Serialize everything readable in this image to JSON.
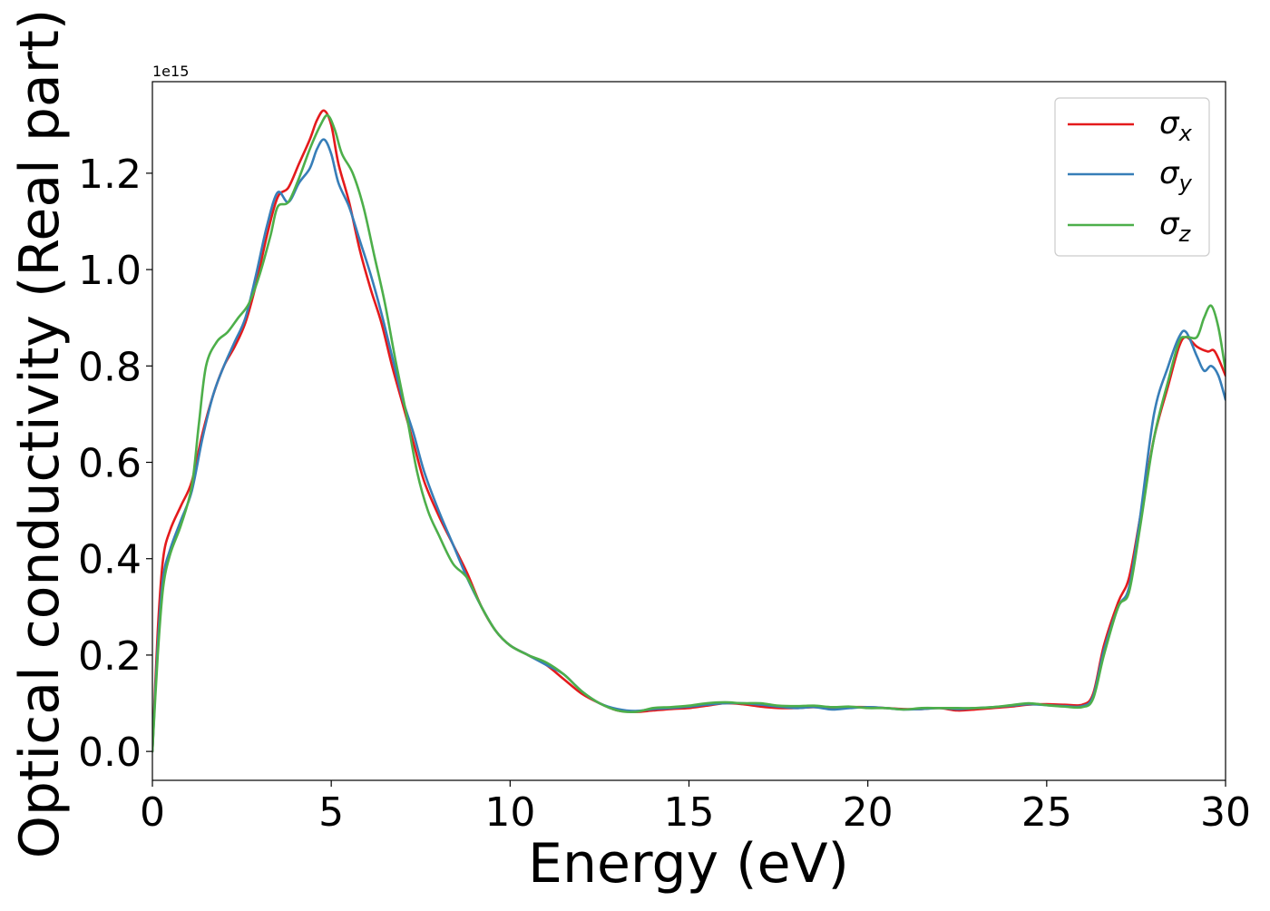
{
  "chart_data": {
    "type": "line",
    "title": "",
    "xlabel": "Energy (eV)",
    "ylabel": "Optical conductivity (Real part)",
    "y_offset_text": "1e15",
    "xlim": [
      0,
      30
    ],
    "ylim": [
      -0.06,
      1.39
    ],
    "x_ticks": [
      0,
      5,
      10,
      15,
      20,
      25,
      30
    ],
    "x_tick_labels": [
      "0",
      "5",
      "10",
      "15",
      "20",
      "25",
      "30"
    ],
    "y_ticks": [
      0.0,
      0.2,
      0.4,
      0.6,
      0.8,
      1.0,
      1.2
    ],
    "y_tick_labels": [
      "0.0",
      "0.2",
      "0.4",
      "0.6",
      "0.8",
      "1.0",
      "1.2"
    ],
    "grid": false,
    "legend_position": "upper-right",
    "series": [
      {
        "name": "σx",
        "symbol": "σ",
        "subscript": "x",
        "color": "#e41a1c",
        "points": [
          [
            0.0,
            0.0
          ],
          [
            0.15,
            0.25
          ],
          [
            0.3,
            0.4
          ],
          [
            0.5,
            0.46
          ],
          [
            0.8,
            0.51
          ],
          [
            1.1,
            0.56
          ],
          [
            1.4,
            0.66
          ],
          [
            1.7,
            0.74
          ],
          [
            2.0,
            0.8
          ],
          [
            2.3,
            0.84
          ],
          [
            2.6,
            0.89
          ],
          [
            2.9,
            0.97
          ],
          [
            3.2,
            1.07
          ],
          [
            3.5,
            1.15
          ],
          [
            3.8,
            1.17
          ],
          [
            4.1,
            1.22
          ],
          [
            4.4,
            1.27
          ],
          [
            4.6,
            1.31
          ],
          [
            4.8,
            1.33
          ],
          [
            5.0,
            1.3
          ],
          [
            5.2,
            1.22
          ],
          [
            5.5,
            1.14
          ],
          [
            5.8,
            1.04
          ],
          [
            6.1,
            0.96
          ],
          [
            6.4,
            0.89
          ],
          [
            6.7,
            0.8
          ],
          [
            7.0,
            0.72
          ],
          [
            7.3,
            0.64
          ],
          [
            7.6,
            0.56
          ],
          [
            8.0,
            0.49
          ],
          [
            8.4,
            0.43
          ],
          [
            8.8,
            0.37
          ],
          [
            9.2,
            0.3
          ],
          [
            9.6,
            0.25
          ],
          [
            10.0,
            0.22
          ],
          [
            10.5,
            0.2
          ],
          [
            11.0,
            0.18
          ],
          [
            11.5,
            0.15
          ],
          [
            12.0,
            0.12
          ],
          [
            12.5,
            0.1
          ],
          [
            13.0,
            0.085
          ],
          [
            13.5,
            0.082
          ],
          [
            14.0,
            0.085
          ],
          [
            14.5,
            0.088
          ],
          [
            15.0,
            0.09
          ],
          [
            15.5,
            0.095
          ],
          [
            16.0,
            0.1
          ],
          [
            16.5,
            0.098
          ],
          [
            17.0,
            0.093
          ],
          [
            17.5,
            0.09
          ],
          [
            18.0,
            0.09
          ],
          [
            18.5,
            0.092
          ],
          [
            19.0,
            0.09
          ],
          [
            19.5,
            0.092
          ],
          [
            20.0,
            0.092
          ],
          [
            20.5,
            0.09
          ],
          [
            21.0,
            0.088
          ],
          [
            21.5,
            0.088
          ],
          [
            22.0,
            0.09
          ],
          [
            22.5,
            0.085
          ],
          [
            23.0,
            0.087
          ],
          [
            23.5,
            0.09
          ],
          [
            24.0,
            0.093
          ],
          [
            24.5,
            0.097
          ],
          [
            25.0,
            0.098
          ],
          [
            25.5,
            0.097
          ],
          [
            26.0,
            0.097
          ],
          [
            26.3,
            0.12
          ],
          [
            26.6,
            0.22
          ],
          [
            27.0,
            0.31
          ],
          [
            27.3,
            0.36
          ],
          [
            27.6,
            0.48
          ],
          [
            28.0,
            0.65
          ],
          [
            28.4,
            0.76
          ],
          [
            28.7,
            0.84
          ],
          [
            28.9,
            0.86
          ],
          [
            29.2,
            0.84
          ],
          [
            29.5,
            0.83
          ],
          [
            29.7,
            0.83
          ],
          [
            30.0,
            0.78
          ]
        ]
      },
      {
        "name": "σy",
        "symbol": "σ",
        "subscript": "y",
        "color": "#377eb8",
        "points": [
          [
            0.0,
            0.0
          ],
          [
            0.15,
            0.22
          ],
          [
            0.3,
            0.36
          ],
          [
            0.5,
            0.42
          ],
          [
            0.8,
            0.48
          ],
          [
            1.1,
            0.54
          ],
          [
            1.4,
            0.65
          ],
          [
            1.7,
            0.74
          ],
          [
            2.0,
            0.8
          ],
          [
            2.3,
            0.85
          ],
          [
            2.6,
            0.9
          ],
          [
            2.9,
            0.99
          ],
          [
            3.2,
            1.09
          ],
          [
            3.5,
            1.16
          ],
          [
            3.8,
            1.14
          ],
          [
            4.1,
            1.18
          ],
          [
            4.4,
            1.21
          ],
          [
            4.6,
            1.25
          ],
          [
            4.8,
            1.27
          ],
          [
            5.0,
            1.24
          ],
          [
            5.2,
            1.18
          ],
          [
            5.5,
            1.13
          ],
          [
            5.8,
            1.06
          ],
          [
            6.1,
            0.99
          ],
          [
            6.4,
            0.91
          ],
          [
            6.7,
            0.82
          ],
          [
            7.0,
            0.73
          ],
          [
            7.3,
            0.66
          ],
          [
            7.6,
            0.58
          ],
          [
            8.0,
            0.5
          ],
          [
            8.4,
            0.43
          ],
          [
            8.8,
            0.36
          ],
          [
            9.2,
            0.3
          ],
          [
            9.6,
            0.25
          ],
          [
            10.0,
            0.22
          ],
          [
            10.5,
            0.2
          ],
          [
            11.0,
            0.18
          ],
          [
            11.5,
            0.16
          ],
          [
            12.0,
            0.125
          ],
          [
            12.5,
            0.1
          ],
          [
            13.0,
            0.088
          ],
          [
            13.5,
            0.084
          ],
          [
            14.0,
            0.088
          ],
          [
            14.5,
            0.09
          ],
          [
            15.0,
            0.093
          ],
          [
            15.5,
            0.097
          ],
          [
            16.0,
            0.1
          ],
          [
            16.5,
            0.1
          ],
          [
            17.0,
            0.097
          ],
          [
            17.5,
            0.093
          ],
          [
            18.0,
            0.09
          ],
          [
            18.5,
            0.092
          ],
          [
            19.0,
            0.087
          ],
          [
            19.5,
            0.09
          ],
          [
            20.0,
            0.092
          ],
          [
            20.5,
            0.09
          ],
          [
            21.0,
            0.087
          ],
          [
            21.5,
            0.088
          ],
          [
            22.0,
            0.09
          ],
          [
            22.5,
            0.088
          ],
          [
            23.0,
            0.09
          ],
          [
            23.5,
            0.092
          ],
          [
            24.0,
            0.095
          ],
          [
            24.5,
            0.098
          ],
          [
            25.0,
            0.096
          ],
          [
            25.5,
            0.094
          ],
          [
            26.0,
            0.094
          ],
          [
            26.3,
            0.115
          ],
          [
            26.6,
            0.21
          ],
          [
            27.0,
            0.3
          ],
          [
            27.3,
            0.34
          ],
          [
            27.6,
            0.48
          ],
          [
            28.0,
            0.7
          ],
          [
            28.4,
            0.8
          ],
          [
            28.7,
            0.86
          ],
          [
            28.9,
            0.87
          ],
          [
            29.2,
            0.82
          ],
          [
            29.4,
            0.79
          ],
          [
            29.6,
            0.8
          ],
          [
            29.8,
            0.78
          ],
          [
            30.0,
            0.73
          ]
        ]
      },
      {
        "name": "σz",
        "symbol": "σ",
        "subscript": "z",
        "color": "#4daf4a",
        "points": [
          [
            0.0,
            0.0
          ],
          [
            0.15,
            0.2
          ],
          [
            0.3,
            0.34
          ],
          [
            0.5,
            0.41
          ],
          [
            0.8,
            0.47
          ],
          [
            1.1,
            0.55
          ],
          [
            1.3,
            0.68
          ],
          [
            1.5,
            0.8
          ],
          [
            1.8,
            0.85
          ],
          [
            2.1,
            0.87
          ],
          [
            2.4,
            0.9
          ],
          [
            2.7,
            0.93
          ],
          [
            3.0,
            0.99
          ],
          [
            3.3,
            1.07
          ],
          [
            3.5,
            1.13
          ],
          [
            3.8,
            1.14
          ],
          [
            4.1,
            1.19
          ],
          [
            4.4,
            1.25
          ],
          [
            4.7,
            1.3
          ],
          [
            4.9,
            1.32
          ],
          [
            5.1,
            1.29
          ],
          [
            5.3,
            1.24
          ],
          [
            5.6,
            1.2
          ],
          [
            5.9,
            1.13
          ],
          [
            6.2,
            1.03
          ],
          [
            6.5,
            0.93
          ],
          [
            6.8,
            0.81
          ],
          [
            7.1,
            0.7
          ],
          [
            7.4,
            0.58
          ],
          [
            7.7,
            0.5
          ],
          [
            8.0,
            0.45
          ],
          [
            8.4,
            0.39
          ],
          [
            8.8,
            0.36
          ],
          [
            9.2,
            0.3
          ],
          [
            9.6,
            0.25
          ],
          [
            10.0,
            0.22
          ],
          [
            10.5,
            0.2
          ],
          [
            11.0,
            0.185
          ],
          [
            11.5,
            0.16
          ],
          [
            12.0,
            0.125
          ],
          [
            12.5,
            0.1
          ],
          [
            13.0,
            0.085
          ],
          [
            13.5,
            0.082
          ],
          [
            14.0,
            0.09
          ],
          [
            14.5,
            0.092
          ],
          [
            15.0,
            0.095
          ],
          [
            15.5,
            0.1
          ],
          [
            16.0,
            0.102
          ],
          [
            16.5,
            0.1
          ],
          [
            17.0,
            0.1
          ],
          [
            17.5,
            0.095
          ],
          [
            18.0,
            0.094
          ],
          [
            18.5,
            0.095
          ],
          [
            19.0,
            0.092
          ],
          [
            19.5,
            0.093
          ],
          [
            20.0,
            0.09
          ],
          [
            20.5,
            0.09
          ],
          [
            21.0,
            0.087
          ],
          [
            21.5,
            0.09
          ],
          [
            22.0,
            0.09
          ],
          [
            22.5,
            0.09
          ],
          [
            23.0,
            0.09
          ],
          [
            23.5,
            0.092
          ],
          [
            24.0,
            0.096
          ],
          [
            24.5,
            0.1
          ],
          [
            25.0,
            0.096
          ],
          [
            25.5,
            0.093
          ],
          [
            26.0,
            0.092
          ],
          [
            26.3,
            0.11
          ],
          [
            26.6,
            0.2
          ],
          [
            27.0,
            0.3
          ],
          [
            27.3,
            0.33
          ],
          [
            27.6,
            0.46
          ],
          [
            28.0,
            0.65
          ],
          [
            28.4,
            0.77
          ],
          [
            28.7,
            0.85
          ],
          [
            28.9,
            0.86
          ],
          [
            29.2,
            0.86
          ],
          [
            29.4,
            0.9
          ],
          [
            29.6,
            0.925
          ],
          [
            29.8,
            0.88
          ],
          [
            30.0,
            0.79
          ]
        ]
      }
    ]
  }
}
